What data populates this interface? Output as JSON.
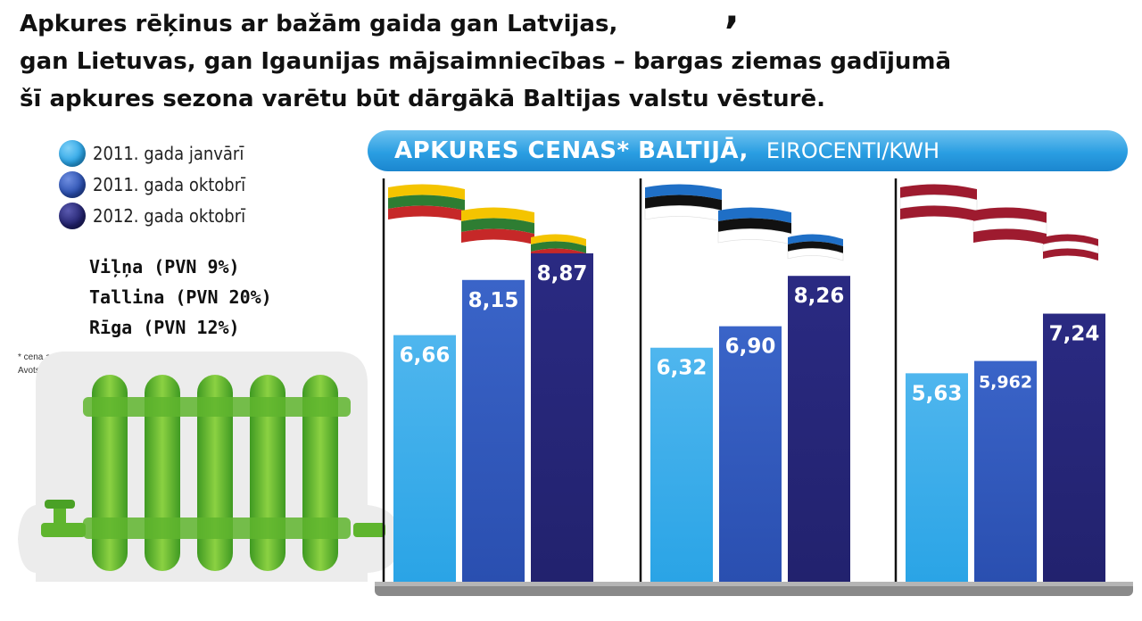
{
  "headline": {
    "lines": [
      "Apkures rēķinus ar bažām gaida gan Latvijas,",
      "gan Lietuvas, gan Igaunijas mājsaimniecības – bargas ziemas gadījumā",
      "šī apkures sezona varētu būt dārgākā Baltijas valstu vēsturē."
    ],
    "top_mark": ","
  },
  "legend": [
    {
      "label": "2011. gada janvārī",
      "color": "#2aa4e6"
    },
    {
      "label": "2011. gada oktobrī",
      "color": "#2a4fb0"
    },
    {
      "label": "2012. gada oktobrī",
      "color": "#22226e"
    }
  ],
  "cities": [
    "Viļņa (PVN 9%)",
    "Tallina (PVN 20%)",
    "Rīga (PVN 12%)"
  ],
  "footnote": {
    "note": "* cena ar PVN",
    "source": "Avots: SEB"
  },
  "chart_data": {
    "type": "bar",
    "title": "APKURES CENAS* BALTIJĀ,",
    "units": "EIROCENTI/KWH",
    "groups": [
      {
        "flag": "lithuania",
        "colors": [
          "#f4c400",
          "#2e7d32",
          "#c62828"
        ]
      },
      {
        "flag": "estonia",
        "colors": [
          "#1f6fc6",
          "#111111",
          "#ffffff"
        ]
      },
      {
        "flag": "latvia",
        "colors": [
          "#9e1b2f",
          "#ffffff",
          "#9e1b2f"
        ]
      }
    ],
    "series": [
      {
        "values": [
          6.66,
          6.32,
          5.63
        ],
        "labels": [
          "6,66",
          "6,32",
          "5,63"
        ],
        "color": "#2aa4e6"
      },
      {
        "values": [
          8.15,
          6.9,
          5.962
        ],
        "labels": [
          "8,15",
          "6,90",
          "5,962"
        ],
        "color": "#2a4fb0"
      },
      {
        "values": [
          8.87,
          8.26,
          7.24
        ],
        "labels": [
          "8,87",
          "8,26",
          "7,24"
        ],
        "color": "#22226e"
      }
    ],
    "ylim": [
      0,
      10
    ],
    "grid": false
  }
}
